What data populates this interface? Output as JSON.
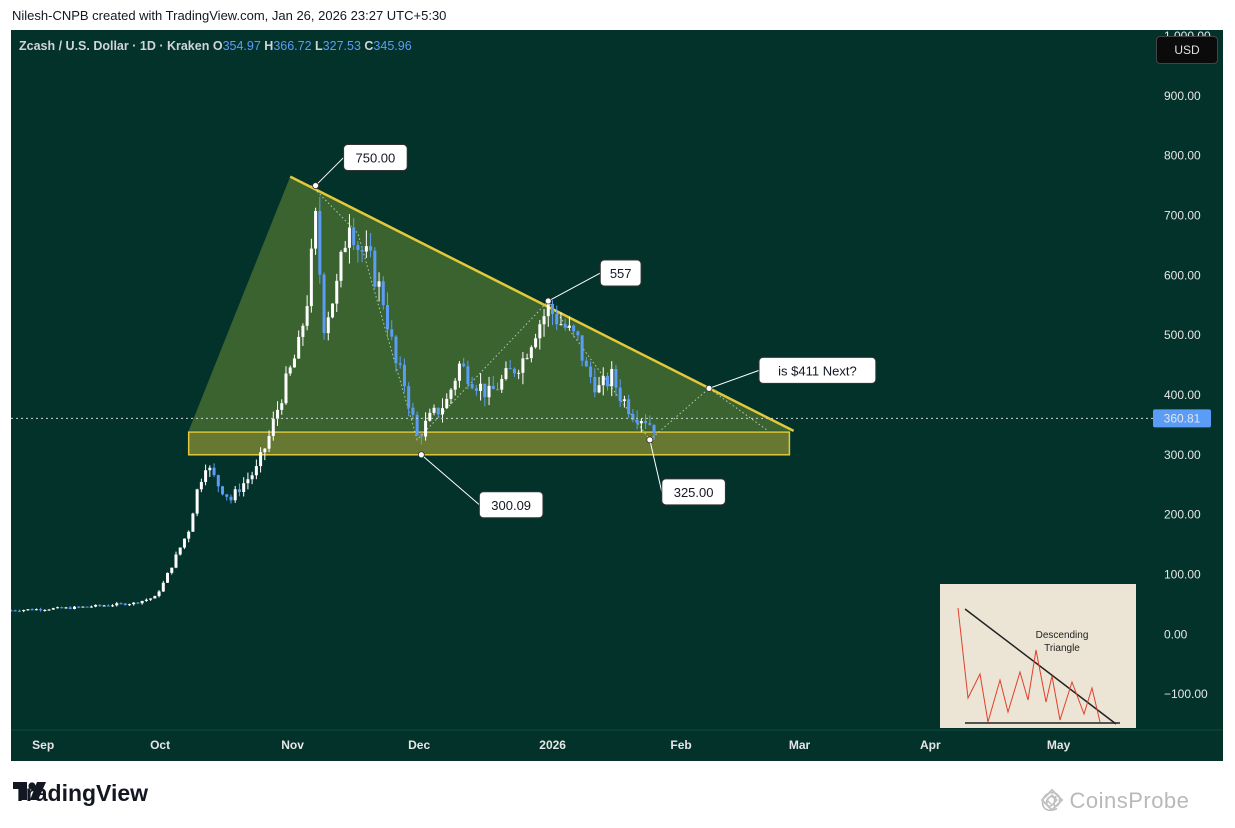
{
  "header": {
    "credit": "Nilesh-CNPB created with TradingView.com, Jan 26, 2026 23:27 UTC+5:30"
  },
  "legend": {
    "symbol": "Zcash / U.S. Dollar · 1D · Kraken",
    "o_label": "O",
    "o_value": "354.97",
    "h_label": "H",
    "h_value": "366.72",
    "l_label": "L",
    "l_value": "327.53",
    "c_label": "C",
    "c_value": "345.96"
  },
  "currency_button": "USD",
  "colors": {
    "background": "#03322a",
    "bull_candle": "#ffffff",
    "bear_candle": "#5b9cf6",
    "trendline": "#e2c83a",
    "triangle_fill": "#8aa63a",
    "support_zone": "#b9b23a",
    "price_line": "#d1d4dc",
    "price_label": "#5b9cf6"
  },
  "brand": {
    "name": "TradingView",
    "icon": "tradingview-logo-icon"
  },
  "watermark": "@ CoinsProbe",
  "inset": {
    "title_line1": "Descending",
    "title_line2": "Triangle",
    "background": "#ece5d5"
  },
  "chart_data": {
    "type": "candlestick",
    "title": "Zcash / U.S. Dollar · 1D · Kraken",
    "y_ticks": [
      "1,000.00",
      "900.00",
      "800.00",
      "700.00",
      "600.00",
      "500.00",
      "400.00",
      "300.00",
      "200.00",
      "100.00",
      "0.00",
      "−100.00"
    ],
    "y_tick_values": [
      1000,
      900,
      800,
      700,
      600,
      500,
      400,
      300,
      200,
      100,
      0,
      -100
    ],
    "x_ticks": [
      "Sep",
      "Oct",
      "Nov",
      "Dec",
      "2026",
      "Feb",
      "Mar",
      "Apr",
      "May"
    ],
    "x_tick_dates": [
      "2025-09-01",
      "2025-10-01",
      "2025-11-01",
      "2025-12-01",
      "2026-01-01",
      "2026-02-01",
      "2026-03-01",
      "2026-04-01",
      "2026-05-01"
    ],
    "ylim": [
      -160,
      1010
    ],
    "xlim": [
      "2025-08-27",
      "2026-05-23"
    ],
    "last_price": "360.81",
    "last_price_value": 360.81,
    "series_close_anchors": [
      [
        "2025-08-27",
        40
      ],
      [
        "2025-09-10",
        44
      ],
      [
        "2025-09-25",
        52
      ],
      [
        "2025-09-30",
        62
      ],
      [
        "2025-10-02",
        85
      ],
      [
        "2025-10-05",
        130
      ],
      [
        "2025-10-08",
        175
      ],
      [
        "2025-10-10",
        240
      ],
      [
        "2025-10-12",
        285
      ],
      [
        "2025-10-15",
        250
      ],
      [
        "2025-10-18",
        225
      ],
      [
        "2025-10-20",
        245
      ],
      [
        "2025-10-24",
        275
      ],
      [
        "2025-10-27",
        330
      ],
      [
        "2025-10-30",
        400
      ],
      [
        "2025-11-03",
        480
      ],
      [
        "2025-11-05",
        560
      ],
      [
        "2025-11-07",
        690
      ],
      [
        "2025-11-09",
        520
      ],
      [
        "2025-11-12",
        580
      ],
      [
        "2025-11-15",
        700
      ],
      [
        "2025-11-17",
        650
      ],
      [
        "2025-11-20",
        620
      ],
      [
        "2025-11-23",
        560
      ],
      [
        "2025-11-26",
        450
      ],
      [
        "2025-11-28",
        420
      ],
      [
        "2025-12-01",
        330
      ],
      [
        "2025-12-04",
        360
      ],
      [
        "2025-12-08",
        390
      ],
      [
        "2025-12-11",
        450
      ],
      [
        "2025-12-15",
        420
      ],
      [
        "2025-12-18",
        400
      ],
      [
        "2025-12-22",
        430
      ],
      [
        "2025-12-26",
        460
      ],
      [
        "2025-12-29",
        510
      ],
      [
        "2026-01-01",
        545
      ],
      [
        "2026-01-04",
        520
      ],
      [
        "2026-01-08",
        490
      ],
      [
        "2026-01-10",
        440
      ],
      [
        "2026-01-13",
        410
      ],
      [
        "2026-01-16",
        430
      ],
      [
        "2026-01-18",
        400
      ],
      [
        "2026-01-21",
        370
      ],
      [
        "2026-01-24",
        360
      ],
      [
        "2026-01-26",
        346
      ]
    ],
    "resistance_line": {
      "from": [
        "2025-11-01",
        765
      ],
      "to": [
        "2026-02-28",
        340
      ]
    },
    "support_zone": {
      "from_date": "2025-10-08",
      "to_date": "2026-02-27",
      "low": 300,
      "high": 338
    },
    "triangle_apex_left": [
      "2025-10-08",
      340
    ],
    "projection_path": [
      [
        "2025-11-06",
        750
      ],
      [
        "2025-11-17",
        670
      ],
      [
        "2025-12-01",
        325
      ],
      [
        "2026-01-01",
        557
      ],
      [
        "2026-01-25",
        325
      ],
      [
        "2026-02-08",
        411
      ],
      [
        "2026-02-22",
        340
      ]
    ],
    "annotations": [
      {
        "label": "750.00",
        "point": [
          "2025-11-07",
          750
        ]
      },
      {
        "label": "557",
        "point": [
          "2026-01-01",
          557
        ]
      },
      {
        "label": "300.09",
        "point": [
          "2025-12-02",
          300
        ]
      },
      {
        "label": "325.00",
        "point": [
          "2026-01-25",
          325
        ]
      },
      {
        "label": "is $411 Next?",
        "point": [
          "2026-02-08",
          411
        ]
      }
    ],
    "grid": false
  }
}
